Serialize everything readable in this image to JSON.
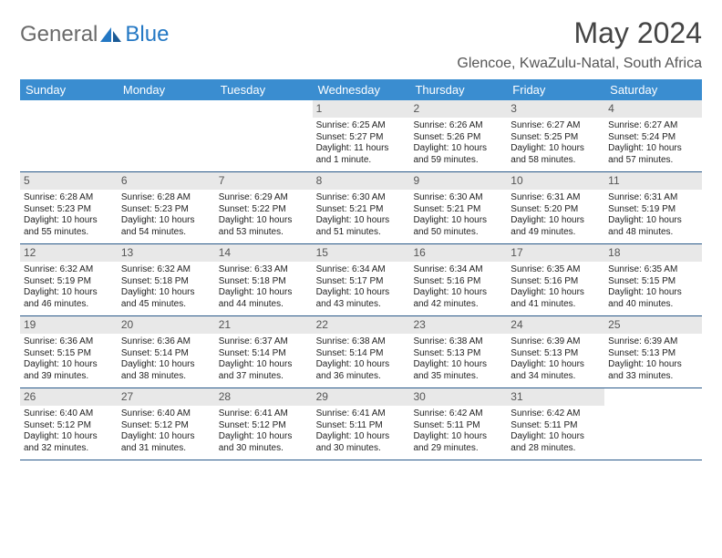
{
  "brand": {
    "word1": "General",
    "word2": "Blue"
  },
  "title": "May 2024",
  "location": "Glencoe, KwaZulu-Natal, South Africa",
  "colors": {
    "header_bg": "#3a8dd0",
    "header_text": "#ffffff",
    "daynum_bg": "#e8e8e8",
    "week_border": "#2a5a8a",
    "body_text": "#222222",
    "brand_gray": "#6a6a6a",
    "brand_blue": "#2478c4"
  },
  "day_names": [
    "Sunday",
    "Monday",
    "Tuesday",
    "Wednesday",
    "Thursday",
    "Friday",
    "Saturday"
  ],
  "weeks": [
    [
      {
        "empty": true
      },
      {
        "empty": true
      },
      {
        "empty": true
      },
      {
        "n": "1",
        "sunrise": "Sunrise: 6:25 AM",
        "sunset": "Sunset: 5:27 PM",
        "daylight": "Daylight: 11 hours and 1 minute."
      },
      {
        "n": "2",
        "sunrise": "Sunrise: 6:26 AM",
        "sunset": "Sunset: 5:26 PM",
        "daylight": "Daylight: 10 hours and 59 minutes."
      },
      {
        "n": "3",
        "sunrise": "Sunrise: 6:27 AM",
        "sunset": "Sunset: 5:25 PM",
        "daylight": "Daylight: 10 hours and 58 minutes."
      },
      {
        "n": "4",
        "sunrise": "Sunrise: 6:27 AM",
        "sunset": "Sunset: 5:24 PM",
        "daylight": "Daylight: 10 hours and 57 minutes."
      }
    ],
    [
      {
        "n": "5",
        "sunrise": "Sunrise: 6:28 AM",
        "sunset": "Sunset: 5:23 PM",
        "daylight": "Daylight: 10 hours and 55 minutes."
      },
      {
        "n": "6",
        "sunrise": "Sunrise: 6:28 AM",
        "sunset": "Sunset: 5:23 PM",
        "daylight": "Daylight: 10 hours and 54 minutes."
      },
      {
        "n": "7",
        "sunrise": "Sunrise: 6:29 AM",
        "sunset": "Sunset: 5:22 PM",
        "daylight": "Daylight: 10 hours and 53 minutes."
      },
      {
        "n": "8",
        "sunrise": "Sunrise: 6:30 AM",
        "sunset": "Sunset: 5:21 PM",
        "daylight": "Daylight: 10 hours and 51 minutes."
      },
      {
        "n": "9",
        "sunrise": "Sunrise: 6:30 AM",
        "sunset": "Sunset: 5:21 PM",
        "daylight": "Daylight: 10 hours and 50 minutes."
      },
      {
        "n": "10",
        "sunrise": "Sunrise: 6:31 AM",
        "sunset": "Sunset: 5:20 PM",
        "daylight": "Daylight: 10 hours and 49 minutes."
      },
      {
        "n": "11",
        "sunrise": "Sunrise: 6:31 AM",
        "sunset": "Sunset: 5:19 PM",
        "daylight": "Daylight: 10 hours and 48 minutes."
      }
    ],
    [
      {
        "n": "12",
        "sunrise": "Sunrise: 6:32 AM",
        "sunset": "Sunset: 5:19 PM",
        "daylight": "Daylight: 10 hours and 46 minutes."
      },
      {
        "n": "13",
        "sunrise": "Sunrise: 6:32 AM",
        "sunset": "Sunset: 5:18 PM",
        "daylight": "Daylight: 10 hours and 45 minutes."
      },
      {
        "n": "14",
        "sunrise": "Sunrise: 6:33 AM",
        "sunset": "Sunset: 5:18 PM",
        "daylight": "Daylight: 10 hours and 44 minutes."
      },
      {
        "n": "15",
        "sunrise": "Sunrise: 6:34 AM",
        "sunset": "Sunset: 5:17 PM",
        "daylight": "Daylight: 10 hours and 43 minutes."
      },
      {
        "n": "16",
        "sunrise": "Sunrise: 6:34 AM",
        "sunset": "Sunset: 5:16 PM",
        "daylight": "Daylight: 10 hours and 42 minutes."
      },
      {
        "n": "17",
        "sunrise": "Sunrise: 6:35 AM",
        "sunset": "Sunset: 5:16 PM",
        "daylight": "Daylight: 10 hours and 41 minutes."
      },
      {
        "n": "18",
        "sunrise": "Sunrise: 6:35 AM",
        "sunset": "Sunset: 5:15 PM",
        "daylight": "Daylight: 10 hours and 40 minutes."
      }
    ],
    [
      {
        "n": "19",
        "sunrise": "Sunrise: 6:36 AM",
        "sunset": "Sunset: 5:15 PM",
        "daylight": "Daylight: 10 hours and 39 minutes."
      },
      {
        "n": "20",
        "sunrise": "Sunrise: 6:36 AM",
        "sunset": "Sunset: 5:14 PM",
        "daylight": "Daylight: 10 hours and 38 minutes."
      },
      {
        "n": "21",
        "sunrise": "Sunrise: 6:37 AM",
        "sunset": "Sunset: 5:14 PM",
        "daylight": "Daylight: 10 hours and 37 minutes."
      },
      {
        "n": "22",
        "sunrise": "Sunrise: 6:38 AM",
        "sunset": "Sunset: 5:14 PM",
        "daylight": "Daylight: 10 hours and 36 minutes."
      },
      {
        "n": "23",
        "sunrise": "Sunrise: 6:38 AM",
        "sunset": "Sunset: 5:13 PM",
        "daylight": "Daylight: 10 hours and 35 minutes."
      },
      {
        "n": "24",
        "sunrise": "Sunrise: 6:39 AM",
        "sunset": "Sunset: 5:13 PM",
        "daylight": "Daylight: 10 hours and 34 minutes."
      },
      {
        "n": "25",
        "sunrise": "Sunrise: 6:39 AM",
        "sunset": "Sunset: 5:13 PM",
        "daylight": "Daylight: 10 hours and 33 minutes."
      }
    ],
    [
      {
        "n": "26",
        "sunrise": "Sunrise: 6:40 AM",
        "sunset": "Sunset: 5:12 PM",
        "daylight": "Daylight: 10 hours and 32 minutes."
      },
      {
        "n": "27",
        "sunrise": "Sunrise: 6:40 AM",
        "sunset": "Sunset: 5:12 PM",
        "daylight": "Daylight: 10 hours and 31 minutes."
      },
      {
        "n": "28",
        "sunrise": "Sunrise: 6:41 AM",
        "sunset": "Sunset: 5:12 PM",
        "daylight": "Daylight: 10 hours and 30 minutes."
      },
      {
        "n": "29",
        "sunrise": "Sunrise: 6:41 AM",
        "sunset": "Sunset: 5:11 PM",
        "daylight": "Daylight: 10 hours and 30 minutes."
      },
      {
        "n": "30",
        "sunrise": "Sunrise: 6:42 AM",
        "sunset": "Sunset: 5:11 PM",
        "daylight": "Daylight: 10 hours and 29 minutes."
      },
      {
        "n": "31",
        "sunrise": "Sunrise: 6:42 AM",
        "sunset": "Sunset: 5:11 PM",
        "daylight": "Daylight: 10 hours and 28 minutes."
      },
      {
        "empty": true
      }
    ]
  ]
}
